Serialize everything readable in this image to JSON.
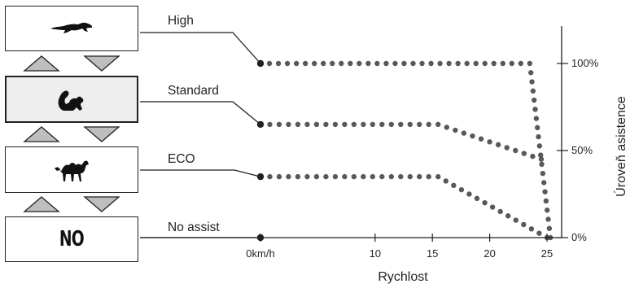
{
  "modes": [
    {
      "id": "high",
      "label": "High",
      "icon": "cheetah-icon",
      "value": 100,
      "fade_start": 23.5,
      "zero_at": 25.3
    },
    {
      "id": "standard",
      "label": "Standard",
      "icon": "squirrel-icon",
      "value": 65,
      "fade_start": 15.5,
      "end_value": 45,
      "end_x": 24.5,
      "zero_at": 25.3
    },
    {
      "id": "eco",
      "label": "ECO",
      "icon": "camel-icon",
      "value": 35,
      "fade_start": 15.5,
      "zero_at": 25
    },
    {
      "id": "no-assist",
      "label": "No assist",
      "box_text": "NO",
      "value": 0
    }
  ],
  "selected_mode": "standard",
  "chart_data": {
    "type": "line",
    "xlabel": "Rychlost",
    "ylabel": "Úroveň asistence",
    "x_ticks": [
      {
        "value": 0,
        "label": "0km/h"
      },
      {
        "value": 10,
        "label": "10"
      },
      {
        "value": 15,
        "label": "15"
      },
      {
        "value": 20,
        "label": "20"
      },
      {
        "value": 25,
        "label": "25"
      }
    ],
    "y_ticks": [
      {
        "value": 0,
        "label": "0%"
      },
      {
        "value": 50,
        "label": "50%"
      },
      {
        "value": 100,
        "label": "100%"
      }
    ],
    "xlim": [
      0,
      26
    ],
    "ylim": [
      0,
      125
    ],
    "series": [
      {
        "name": "High",
        "points": [
          [
            0,
            100
          ],
          [
            23.5,
            100
          ],
          [
            25.3,
            0
          ]
        ]
      },
      {
        "name": "Standard",
        "points": [
          [
            0,
            65
          ],
          [
            15.5,
            65
          ],
          [
            24.5,
            45
          ]
        ]
      },
      {
        "name": "ECO",
        "points": [
          [
            0,
            35
          ],
          [
            15.5,
            35
          ],
          [
            25,
            0
          ]
        ]
      },
      {
        "name": "No assist",
        "points": [
          [
            0,
            0
          ]
        ]
      }
    ]
  },
  "colors": {
    "dots": "#58595b",
    "line": "#231f20",
    "arrow_fill": "#bcbec0"
  }
}
